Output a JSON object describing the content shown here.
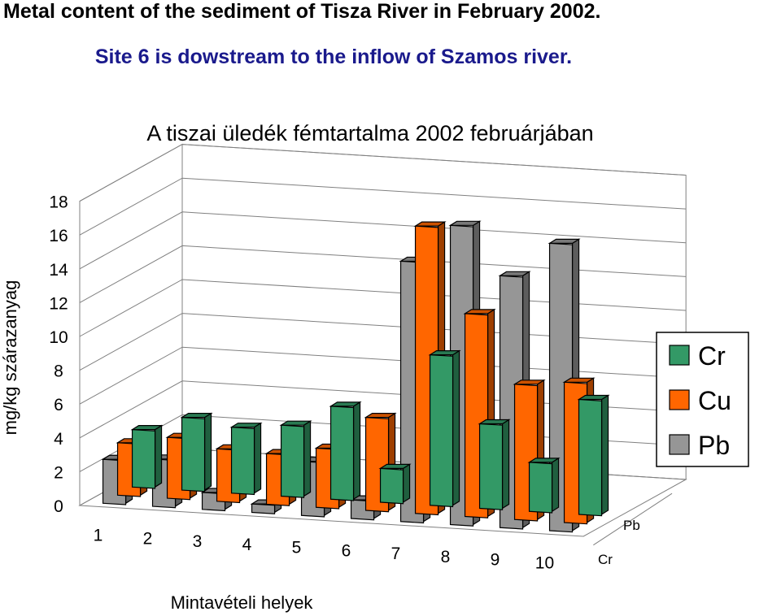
{
  "header": {
    "line1": "Metal content of the sediment of Tisza River in February 2002.",
    "line2": "Site 6 is dowstream to the inflow of Szamos river."
  },
  "chart_data": {
    "type": "bar",
    "style": "3d-clustered-depth",
    "title": "A tiszai üledék fémtartalma 2002 februárjában",
    "xlabel": "Mintavételi helyek",
    "ylabel": "mg/kg szárazanyag",
    "ylim": [
      0,
      18
    ],
    "yticks": [
      "0",
      "2",
      "4",
      "6",
      "8",
      "10",
      "12",
      "14",
      "16",
      "18"
    ],
    "categories": [
      "1",
      "2",
      "3",
      "4",
      "5",
      "6",
      "7",
      "8",
      "9",
      "10"
    ],
    "depth_axis_labels": [
      "Cr",
      "Pb"
    ],
    "legend_position": "right",
    "series": [
      {
        "name": "Cr",
        "color": "#339966",
        "values": [
          3.4,
          4.3,
          3.9,
          4.2,
          5.5,
          2.0,
          8.9,
          5.0,
          2.9,
          6.8
        ]
      },
      {
        "name": "Cu",
        "color": "#ff6600",
        "values": [
          3.1,
          3.6,
          3.1,
          3.0,
          3.5,
          5.5,
          17.0,
          12.0,
          8.0,
          8.3
        ]
      },
      {
        "name": "Pb",
        "color": "#969696",
        "values": [
          2.6,
          2.8,
          1.0,
          0.5,
          3.2,
          1.1,
          15.4,
          17.7,
          14.9,
          17.0
        ]
      }
    ]
  }
}
